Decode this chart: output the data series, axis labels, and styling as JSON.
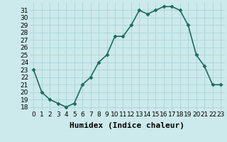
{
  "x": [
    0,
    1,
    2,
    3,
    4,
    5,
    6,
    7,
    8,
    9,
    10,
    11,
    12,
    13,
    14,
    15,
    16,
    17,
    18,
    19,
    20,
    21,
    22,
    23
  ],
  "y": [
    23,
    20,
    19,
    18.5,
    18,
    18.5,
    21,
    22,
    24,
    25,
    27.5,
    27.5,
    29,
    31,
    30.5,
    31,
    31.5,
    31.5,
    31,
    29,
    25,
    23.5,
    21,
    21
  ],
  "xlabel": "Humidex (Indice chaleur)",
  "line_color": "#1f6b5e",
  "marker": "D",
  "marker_size": 2.5,
  "bg_color": "#cce9eb",
  "grid_color": "#aad4d8",
  "ylim": [
    17.5,
    32
  ],
  "xlim": [
    -0.5,
    23.5
  ],
  "yticks": [
    18,
    19,
    20,
    21,
    22,
    23,
    24,
    25,
    26,
    27,
    28,
    29,
    30,
    31
  ],
  "xticks": [
    0,
    1,
    2,
    3,
    4,
    5,
    6,
    7,
    8,
    9,
    10,
    11,
    12,
    13,
    14,
    15,
    16,
    17,
    18,
    19,
    20,
    21,
    22,
    23
  ],
  "xtick_labels": [
    "0",
    "1",
    "2",
    "3",
    "4",
    "5",
    "6",
    "7",
    "8",
    "9",
    "10",
    "11",
    "12",
    "13",
    "14",
    "15",
    "16",
    "17",
    "18",
    "19",
    "20",
    "21",
    "22",
    "23"
  ],
  "tick_fontsize": 6.5,
  "xlabel_fontsize": 8,
  "line_width": 1.2
}
